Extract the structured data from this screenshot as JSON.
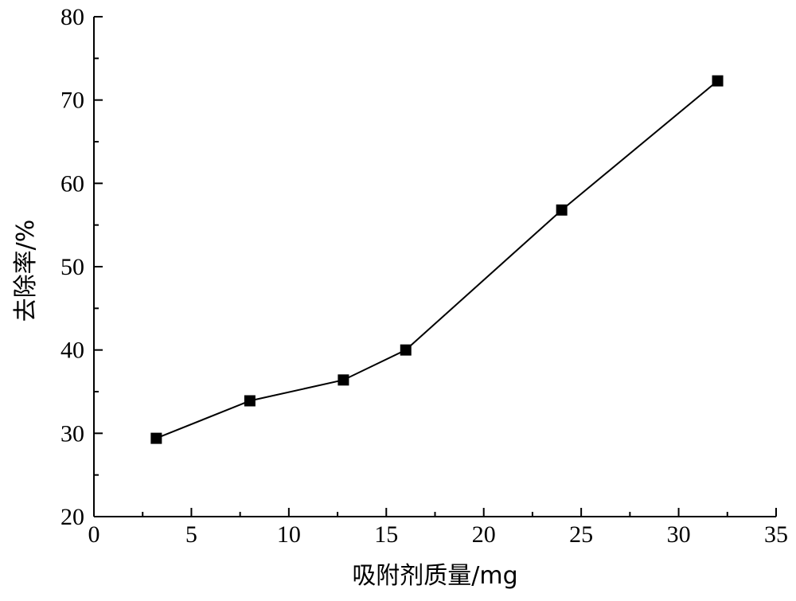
{
  "chart_data": {
    "type": "line",
    "title": "",
    "xlabel": "吸附剂质量/mg",
    "ylabel": "去除率/%",
    "xlim": [
      0,
      35
    ],
    "ylim": [
      20,
      80
    ],
    "x_ticks": [
      0,
      5,
      10,
      15,
      20,
      25,
      30,
      35
    ],
    "y_ticks": [
      20,
      30,
      40,
      50,
      60,
      70,
      80
    ],
    "grid": false,
    "legend": "none",
    "series": [
      {
        "marker": "square",
        "color": "#000000",
        "points": [
          {
            "x": 3.2,
            "y": 29.4
          },
          {
            "x": 8.0,
            "y": 33.9
          },
          {
            "x": 12.8,
            "y": 36.4
          },
          {
            "x": 16.0,
            "y": 40.0
          },
          {
            "x": 24.0,
            "y": 56.8
          },
          {
            "x": 32.0,
            "y": 72.3
          }
        ]
      }
    ]
  }
}
